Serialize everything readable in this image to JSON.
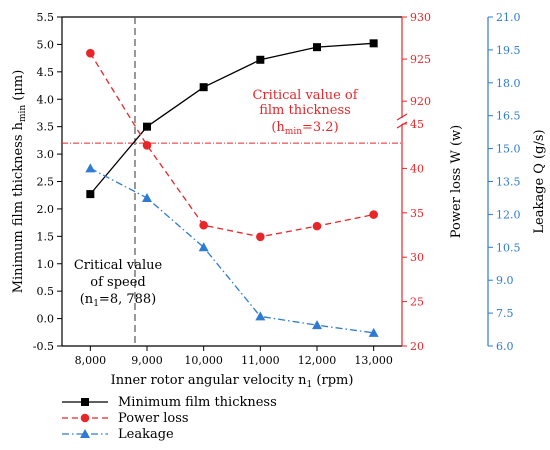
{
  "chart_data": {
    "type": "line",
    "x": [
      8000,
      9000,
      10000,
      11000,
      12000,
      13000
    ],
    "x_tick_labels": [
      "8,000",
      "9,000",
      "10,000",
      "11,000",
      "12,000",
      "13,000"
    ],
    "xlabel": "Inner rotor angular velocity n",
    "xlabel_sub": "1",
    "xlabel_unit": " (rpm)",
    "xlim": [
      7500,
      13500
    ],
    "axes": {
      "left": {
        "label_main": "Minimum film thickness h",
        "label_sub": "min",
        "label_unit": " (μm)",
        "range": [
          -0.5,
          5.5
        ],
        "ticks": [
          "-0.5",
          "0.0",
          "0.5",
          "1.0",
          "1.5",
          "2.0",
          "2.5",
          "3.0",
          "3.5",
          "4.0",
          "4.5",
          "5.0",
          "5.5"
        ],
        "color": "#000000"
      },
      "right_power": {
        "label_main": "Power loss W",
        "label_unit": " (w)",
        "lower_range": [
          20,
          45
        ],
        "upper_range": [
          918,
          930
        ],
        "lower_ticks": [
          "20",
          "25",
          "30",
          "35",
          "40",
          "45"
        ],
        "upper_ticks": [
          "920",
          "925",
          "930"
        ],
        "color": "#e8262a"
      },
      "right_leakage": {
        "label_main": "Leakage Q",
        "label_unit": " (g/s)",
        "range": [
          6.0,
          21.0
        ],
        "ticks": [
          "6.0",
          "7.5",
          "9.0",
          "10.5",
          "12.0",
          "13.5",
          "15.0",
          "16.5",
          "18.0",
          "19.5",
          "21.0"
        ],
        "color": "#2f7bd1"
      }
    },
    "series": [
      {
        "name": "Minimum film thickness",
        "axis": "left",
        "color": "#000000",
        "style": "solid",
        "marker": "square",
        "values": [
          2.27,
          3.5,
          4.22,
          4.72,
          4.95,
          5.02
        ]
      },
      {
        "name": "Power loss",
        "axis": "right_power",
        "color": "#e8262a",
        "style": "dashed",
        "marker": "circle",
        "values": [
          925.7,
          42.6,
          33.6,
          32.3,
          33.5,
          34.8
        ]
      },
      {
        "name": "Leakage",
        "axis": "right_leakage",
        "color": "#2f7bd1",
        "style": "dashdot",
        "marker": "triangle",
        "values": [
          14.1,
          12.75,
          10.5,
          7.35,
          6.95,
          6.6
        ]
      }
    ],
    "reference_lines": {
      "vertical": {
        "x": 8788,
        "color": "#555555"
      },
      "horizontal": {
        "y": 3.2,
        "axis": "left",
        "color": "#e8262a"
      }
    },
    "annotations": {
      "film": {
        "line1": "Critical value of",
        "line2": "film thickness",
        "line3_prefix": "(h",
        "line3_sub": "min",
        "line3_suffix": "=3.2)"
      },
      "speed": {
        "line1": "Critical value",
        "line2": "of speed",
        "line3_prefix": "(n",
        "line3_sub": "1",
        "line3_suffix": "=8, 788)"
      }
    },
    "grid": false,
    "legend_position": "bottom-left"
  }
}
